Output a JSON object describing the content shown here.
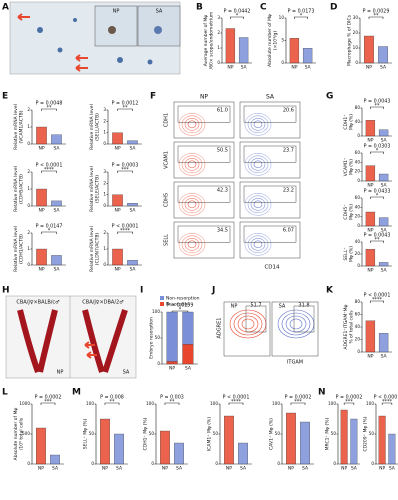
{
  "figure": {
    "letters": [
      "A",
      "B",
      "C",
      "D",
      "E",
      "F",
      "G",
      "H",
      "I",
      "J",
      "K",
      "L",
      "M",
      "N"
    ],
    "bar_colors": [
      "#e8472e",
      "#7a8fd8"
    ],
    "image_a": {
      "labels": [
        "NP",
        "SA"
      ]
    },
    "image_h": {
      "labels": [
        "CBA/J♀×BALB/c♂",
        "CBA/J♀×DBA/2♂",
        "NP",
        "SA"
      ]
    },
    "flow_f": {
      "columns": [
        "NP",
        "SA"
      ],
      "rows": [
        {
          "marker": "CDH1",
          "values": [
            "61.0",
            "20.6"
          ]
        },
        {
          "marker": "VCAM1",
          "values": [
            "50.5",
            "23.7"
          ]
        },
        {
          "marker": "CDH5",
          "values": [
            "42.3",
            "23.2"
          ]
        },
        {
          "marker": "SELL",
          "values": [
            "34.5",
            "6.07"
          ]
        }
      ],
      "xlabel": "CD14"
    },
    "flow_j": {
      "columns": [
        "NP",
        "SA"
      ],
      "values": [
        "51.7",
        "31.8"
      ],
      "ylabel": "ADGRE1",
      "xlabel": "ITGAM"
    },
    "stacked_i": {
      "ylabel": [
        "Embryo resorption"
      ],
      "p": "P = 0.0159",
      "stars": "*",
      "categories": [
        "NP",
        "SA"
      ],
      "series": [
        {
          "name": "Non-resorption",
          "color": "#7a8fd8",
          "values": [
            95,
            62
          ]
        },
        {
          "name": "Resorption",
          "color": "#e8472e",
          "values": [
            5,
            38
          ]
        }
      ],
      "ylim": [
        0,
        100
      ],
      "yticks": [
        0,
        50,
        100
      ]
    },
    "bar_panels": [
      {
        "ylabel": [
          "Average number of Mφ",
          "/60× scope/endometrium"
        ],
        "p": "P = 0.0442",
        "stars": "*",
        "categories": [
          "NP",
          "SA"
        ],
        "values": [
          2.3,
          1.7
        ],
        "ylim": [
          0,
          3
        ],
        "yticks": [
          0,
          1,
          2,
          3
        ]
      },
      {
        "ylabel": [
          "Absolute number of Mφ",
          "(×10⁴/g)"
        ],
        "p": "P = 0.0173",
        "stars": "*",
        "categories": [
          "NP",
          "SA"
        ],
        "values": [
          5.5,
          3.3
        ],
        "ylim": [
          0,
          10
        ],
        "yticks": [
          0,
          5,
          10
        ]
      },
      {
        "ylabel": [
          "Macrophage % of DICs"
        ],
        "p": "P = 0.0029",
        "stars": "**",
        "categories": [
          "NP",
          "SA"
        ],
        "values": [
          18,
          11
        ],
        "ylim": [
          0,
          30
        ],
        "yticks": [
          0,
          10,
          20,
          30
        ]
      },
      {
        "ylabel": [
          "Relative mRNA level",
          "(VCAM1/ACTB)"
        ],
        "p": "P = 0.0048",
        "stars": "**",
        "categories": [
          "NP",
          "SA"
        ],
        "values": [
          1.0,
          0.55
        ],
        "ylim": [
          0,
          2
        ],
        "yticks": [
          0,
          1,
          2
        ]
      },
      {
        "ylabel": [
          "Relative mRNA level",
          "(SELL/ACTB)"
        ],
        "p": "P = 0.0012",
        "stars": "**",
        "categories": [
          "NP",
          "SA"
        ],
        "values": [
          1.0,
          0.3
        ],
        "ylim": [
          0,
          3
        ],
        "yticks": [
          0,
          1,
          2,
          3
        ]
      },
      {
        "ylabel": [
          "Relative mRNA level",
          "(CDH5/ACTB)"
        ],
        "p": "P < 0.0001",
        "stars": "****",
        "categories": [
          "NP",
          "SA"
        ],
        "values": [
          1.0,
          0.3
        ],
        "ylim": [
          0,
          2
        ],
        "yticks": [
          0,
          1,
          2
        ]
      },
      {
        "ylabel": [
          "Relative mRNA level",
          "(SELE/ACTB)"
        ],
        "p": "P = 0.0003",
        "stars": "***",
        "categories": [
          "NP",
          "SA"
        ],
        "values": [
          1.0,
          0.25
        ],
        "ylim": [
          0,
          3
        ],
        "yticks": [
          0,
          1,
          2,
          3
        ]
      },
      {
        "ylabel": [
          "Relative mRNA level",
          "(CDH1/ACTB)"
        ],
        "p": "P = 0.0147",
        "stars": "*",
        "categories": [
          "NP",
          "SA"
        ],
        "values": [
          1.0,
          0.6
        ],
        "ylim": [
          0,
          2
        ],
        "yticks": [
          0,
          1,
          2
        ]
      },
      {
        "ylabel": [
          "Relative mRNA level",
          "(CLDN7/ACTB)"
        ],
        "p": "P < 0.0001",
        "stars": "****",
        "categories": [
          "NP",
          "SA"
        ],
        "values": [
          1.0,
          0.3
        ],
        "ylim": [
          0,
          2
        ],
        "yticks": [
          0,
          1,
          2
        ]
      },
      {
        "ylabel": [
          "CDH1⁺",
          "Mφ (%)"
        ],
        "p": "P = 0.0043",
        "stars": "**",
        "categories": [
          "NP",
          "SA"
        ],
        "values": [
          45,
          18
        ],
        "ylim": [
          0,
          80
        ],
        "yticks": [
          0,
          40,
          80
        ]
      },
      {
        "ylabel": [
          "VCAM1⁺",
          "Mφ (%)"
        ],
        "p": "P = 0.0303",
        "stars": "*",
        "categories": [
          "NP",
          "SA"
        ],
        "values": [
          33,
          15
        ],
        "ylim": [
          0,
          60
        ],
        "yticks": [
          0,
          20,
          40,
          60
        ]
      },
      {
        "ylabel": [
          "CDH5⁺",
          "Mφ (%)"
        ],
        "p": "P = 0.0433",
        "stars": "*",
        "categories": [
          "NP",
          "SA"
        ],
        "values": [
          30,
          18
        ],
        "ylim": [
          0,
          60
        ],
        "yticks": [
          0,
          20,
          40,
          60
        ]
      },
      {
        "ylabel": [
          "SELL⁺",
          "Mφ (%)"
        ],
        "p": "P = 0.0043",
        "stars": "**",
        "categories": [
          "NP",
          "SA"
        ],
        "values": [
          28,
          6
        ],
        "ylim": [
          0,
          40
        ],
        "yticks": [
          0,
          20,
          40
        ]
      },
      {
        "ylabel": [
          "ADGRE1⁺ITGAM⁺Mφ",
          "% of total cells"
        ],
        "p": "P < 0.0001",
        "stars": "****",
        "categories": [
          "NP",
          "SA"
        ],
        "values": [
          50,
          30
        ],
        "ylim": [
          0,
          80
        ],
        "yticks": [
          0,
          20,
          40,
          60,
          80
        ]
      },
      {
        "ylabel": [
          "Absolute number of Mφ",
          "/10⁶ total cells"
        ],
        "p": "P = 0.0002",
        "stars": "***",
        "categories": [
          "NP",
          "SA"
        ],
        "values": [
          600,
          150
        ],
        "ylim": [
          0,
          1000
        ],
        "yticks": [
          0,
          500,
          1000
        ]
      },
      {
        "ylabel": [
          "SELL⁺ Mφ (%)"
        ],
        "p": "P = 0.008",
        "stars": "**",
        "categories": [
          "NP",
          "SA"
        ],
        "values": [
          75,
          50
        ],
        "ylim": [
          0,
          100
        ],
        "yticks": [
          0,
          50,
          100
        ]
      },
      {
        "ylabel": [
          "CDH1⁺ Mφ (%)"
        ],
        "p": "P = 0.003",
        "stars": "**",
        "categories": [
          "NP",
          "SA"
        ],
        "values": [
          55,
          35
        ],
        "ylim": [
          0,
          100
        ],
        "yticks": [
          0,
          50,
          100
        ]
      },
      {
        "ylabel": [
          "ICAM1⁺ Mφ (%)"
        ],
        "p": "P < 0.0001",
        "stars": "****",
        "categories": [
          "NP",
          "SA"
        ],
        "values": [
          80,
          35
        ],
        "ylim": [
          0,
          100
        ],
        "yticks": [
          0,
          50,
          100
        ]
      },
      {
        "ylabel": [
          "CAV1⁺ Mφ (%)"
        ],
        "p": "P = 0.0002",
        "stars": "***",
        "categories": [
          "NP",
          "SA"
        ],
        "values": [
          85,
          70
        ],
        "ylim": [
          0,
          100
        ],
        "yticks": [
          0,
          50,
          100
        ]
      },
      {
        "ylabel": [
          "MRC1⁺ Mφ (%)"
        ],
        "p": "P = 0.0002",
        "stars": "***",
        "categories": [
          "NP",
          "SA"
        ],
        "values": [
          90,
          75
        ],
        "ylim": [
          0,
          100
        ],
        "yticks": [
          0,
          50,
          100
        ]
      },
      {
        "ylabel": [
          "CD209⁺ Mφ (%)"
        ],
        "p": "P < 0.0001",
        "stars": "****",
        "categories": [
          "NP",
          "SA"
        ],
        "values": [
          80,
          50
        ],
        "ylim": [
          0,
          100
        ],
        "yticks": [
          0,
          50,
          100
        ]
      }
    ]
  }
}
